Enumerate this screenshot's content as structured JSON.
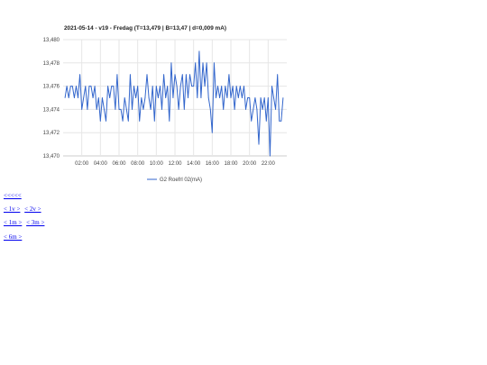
{
  "chart_data": {
    "type": "line",
    "title": "2021-05-14 - v19 - Fredag (T=13,479 | B=13,47 | d=0,009 mA)",
    "xlabel": "",
    "ylabel": "",
    "ylim": [
      13.47,
      13.48
    ],
    "y_ticks": [
      "13,470",
      "13,472",
      "13,474",
      "13,476",
      "13,478",
      "13,480"
    ],
    "y_tick_values": [
      13.47,
      13.472,
      13.474,
      13.476,
      13.478,
      13.48
    ],
    "x_ticks": [
      "02:00",
      "04:00",
      "06:00",
      "08:00",
      "10:00",
      "12:00",
      "14:00",
      "16:00",
      "18:00",
      "20:00",
      "22:00"
    ],
    "x_tick_values": [
      2,
      4,
      6,
      8,
      10,
      12,
      14,
      16,
      18,
      20,
      22
    ],
    "xlim": [
      0,
      24
    ],
    "grid": true,
    "legend_position": "bottom",
    "series": [
      {
        "name": "G2 Roefrl 02(mA)",
        "color": "#3366cc",
        "x": [
          0.2,
          0.4,
          0.6,
          0.8,
          1.0,
          1.2,
          1.4,
          1.6,
          1.8,
          2.0,
          2.2,
          2.4,
          2.6,
          2.8,
          3.0,
          3.2,
          3.4,
          3.6,
          3.8,
          4.0,
          4.2,
          4.4,
          4.6,
          4.8,
          5.0,
          5.2,
          5.4,
          5.6,
          5.8,
          6.0,
          6.2,
          6.4,
          6.6,
          6.8,
          7.0,
          7.2,
          7.4,
          7.6,
          7.8,
          8.0,
          8.2,
          8.4,
          8.6,
          8.8,
          9.0,
          9.2,
          9.4,
          9.6,
          9.8,
          10.0,
          10.2,
          10.4,
          10.6,
          10.8,
          11.0,
          11.2,
          11.4,
          11.6,
          11.8,
          12.0,
          12.2,
          12.4,
          12.6,
          12.8,
          13.0,
          13.2,
          13.4,
          13.6,
          13.8,
          14.0,
          14.2,
          14.4,
          14.6,
          14.8,
          15.0,
          15.2,
          15.4,
          15.6,
          15.8,
          16.0,
          16.2,
          16.4,
          16.6,
          16.8,
          17.0,
          17.2,
          17.4,
          17.6,
          17.8,
          18.0,
          18.2,
          18.4,
          18.6,
          18.8,
          19.0,
          19.2,
          19.4,
          19.6,
          19.8,
          20.0,
          20.2,
          20.4,
          20.6,
          20.8,
          21.0,
          21.2,
          21.4,
          21.6,
          21.8,
          22.0,
          22.2,
          22.4,
          22.6,
          22.8,
          23.0,
          23.2,
          23.4,
          23.6
        ],
        "values": [
          13.475,
          13.476,
          13.475,
          13.476,
          13.476,
          13.475,
          13.476,
          13.475,
          13.477,
          13.474,
          13.475,
          13.476,
          13.474,
          13.476,
          13.476,
          13.475,
          13.476,
          13.474,
          13.475,
          13.473,
          13.475,
          13.474,
          13.473,
          13.476,
          13.475,
          13.476,
          13.476,
          13.474,
          13.477,
          13.474,
          13.474,
          13.473,
          13.475,
          13.474,
          13.473,
          13.477,
          13.474,
          13.476,
          13.475,
          13.476,
          13.473,
          13.475,
          13.474,
          13.475,
          13.477,
          13.475,
          13.474,
          13.476,
          13.473,
          13.476,
          13.475,
          13.476,
          13.474,
          13.477,
          13.475,
          13.476,
          13.473,
          13.478,
          13.475,
          13.477,
          13.476,
          13.474,
          13.476,
          13.477,
          13.474,
          13.477,
          13.475,
          13.477,
          13.476,
          13.476,
          13.478,
          13.475,
          13.479,
          13.475,
          13.478,
          13.476,
          13.478,
          13.475,
          13.474,
          13.472,
          13.478,
          13.475,
          13.476,
          13.475,
          13.476,
          13.474,
          13.476,
          13.475,
          13.477,
          13.475,
          13.476,
          13.474,
          13.476,
          13.475,
          13.476,
          13.475,
          13.476,
          13.474,
          13.475,
          13.475,
          13.473,
          13.474,
          13.475,
          13.474,
          13.471,
          13.475,
          13.474,
          13.475,
          13.473,
          13.475,
          13.47,
          13.476,
          13.475,
          13.474,
          13.477,
          13.473,
          13.473,
          13.475
        ]
      }
    ]
  },
  "nav": {
    "row1": [
      "<<<<<"
    ],
    "row2": [
      "< 1v >",
      "< 2v >"
    ],
    "row3": [
      "< 1m >",
      "< 3m >"
    ],
    "row4": [
      "< 6m >"
    ]
  }
}
